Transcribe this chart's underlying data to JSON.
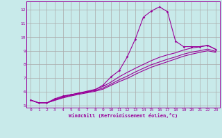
{
  "xlabel": "Windchill (Refroidissement éolien,°C)",
  "bg_color": "#c8eaea",
  "grid_color": "#aaaaaa",
  "line_color": "#990099",
  "xlim": [
    -0.5,
    23.5
  ],
  "ylim": [
    4.85,
    12.6
  ],
  "yticks": [
    5,
    6,
    7,
    8,
    9,
    10,
    11,
    12
  ],
  "xticks": [
    0,
    1,
    2,
    3,
    4,
    5,
    6,
    7,
    8,
    9,
    10,
    11,
    12,
    13,
    14,
    15,
    16,
    17,
    18,
    19,
    20,
    21,
    22,
    23
  ],
  "line1_x": [
    0,
    1,
    2,
    3,
    4,
    5,
    6,
    7,
    8,
    9,
    10,
    11,
    12,
    13,
    14,
    15,
    16,
    17,
    18,
    19,
    20,
    21,
    22,
    23
  ],
  "line1_y": [
    5.4,
    5.2,
    5.2,
    5.5,
    5.7,
    5.8,
    5.9,
    6.0,
    6.15,
    6.5,
    7.1,
    7.55,
    8.55,
    9.85,
    11.45,
    11.9,
    12.2,
    11.85,
    9.7,
    9.3,
    9.3,
    9.3,
    9.4,
    9.1
  ],
  "line2_x": [
    0,
    1,
    2,
    3,
    4,
    5,
    6,
    7,
    8,
    9,
    10,
    11,
    12,
    13,
    14,
    15,
    16,
    17,
    18,
    19,
    20,
    21,
    22,
    23
  ],
  "line2_y": [
    5.4,
    5.2,
    5.2,
    5.45,
    5.65,
    5.8,
    5.92,
    6.05,
    6.18,
    6.4,
    6.72,
    7.1,
    7.42,
    7.72,
    8.0,
    8.28,
    8.52,
    8.7,
    8.85,
    9.05,
    9.2,
    9.28,
    9.38,
    9.1
  ],
  "line3_x": [
    0,
    1,
    2,
    3,
    4,
    5,
    6,
    7,
    8,
    9,
    10,
    11,
    12,
    13,
    14,
    15,
    16,
    17,
    18,
    19,
    20,
    21,
    22,
    23
  ],
  "line3_y": [
    5.4,
    5.2,
    5.2,
    5.4,
    5.6,
    5.75,
    5.88,
    5.98,
    6.1,
    6.28,
    6.58,
    6.88,
    7.15,
    7.45,
    7.72,
    7.98,
    8.18,
    8.38,
    8.55,
    8.75,
    8.9,
    9.0,
    9.12,
    8.95
  ],
  "line4_x": [
    0,
    1,
    2,
    3,
    4,
    5,
    6,
    7,
    8,
    9,
    10,
    11,
    12,
    13,
    14,
    15,
    16,
    17,
    18,
    19,
    20,
    21,
    22,
    23
  ],
  "line4_y": [
    5.4,
    5.2,
    5.2,
    5.38,
    5.56,
    5.7,
    5.82,
    5.93,
    6.04,
    6.2,
    6.48,
    6.75,
    6.98,
    7.28,
    7.55,
    7.8,
    8.0,
    8.2,
    8.4,
    8.6,
    8.75,
    8.88,
    9.0,
    8.88
  ]
}
